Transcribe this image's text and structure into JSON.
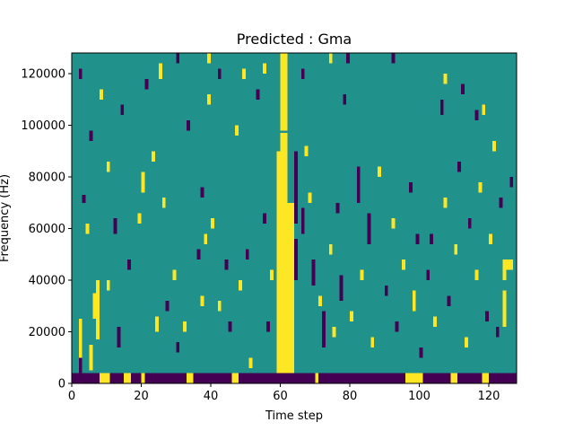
{
  "chart_data": {
    "type": "heatmap",
    "title": "Predicted : Gma",
    "xlabel": "Time step",
    "ylabel": "Frequency (Hz)",
    "xlim": [
      0,
      128
    ],
    "ylim": [
      0,
      128000
    ],
    "x_ticks": [
      0,
      20,
      40,
      60,
      80,
      100,
      120
    ],
    "y_ticks": [
      0,
      20000,
      40000,
      60000,
      80000,
      100000,
      120000
    ],
    "x_tick_labels": [
      "0",
      "20",
      "40",
      "60",
      "80",
      "100",
      "120"
    ],
    "y_tick_labels": [
      "0",
      "20000",
      "40000",
      "60000",
      "80000",
      "100000",
      "120000"
    ],
    "grid": false,
    "colormap": "viridis",
    "levels": [
      "low",
      "mid",
      "high"
    ],
    "colors": {
      "low": "#440154",
      "mid": "#21918c",
      "high": "#fde725"
    },
    "background_level": "mid",
    "freq_bins": 128,
    "time_steps": 128,
    "bin_height_hz": 1000,
    "segments": [
      {
        "x0": 59,
        "x1": 60,
        "y0": 0,
        "y1": 90000,
        "level": "high"
      },
      {
        "x0": 60,
        "x1": 62,
        "y0": 0,
        "y1": 97000,
        "level": "high"
      },
      {
        "x0": 62,
        "x1": 64,
        "y0": 0,
        "y1": 70000,
        "level": "high"
      },
      {
        "x0": 60,
        "x1": 62,
        "y0": 98000,
        "y1": 128000,
        "level": "high"
      },
      {
        "x0": 0,
        "x1": 128,
        "y0": 0,
        "y1": 4000,
        "level": "low"
      },
      {
        "x0": 2,
        "x1": 3,
        "y0": 4000,
        "y1": 11000,
        "level": "low"
      },
      {
        "x0": 8,
        "x1": 11,
        "y0": 0,
        "y1": 4000,
        "level": "high"
      },
      {
        "x0": 15,
        "x1": 17,
        "y0": 0,
        "y1": 4000,
        "level": "high"
      },
      {
        "x0": 20,
        "x1": 21,
        "y0": 0,
        "y1": 4000,
        "level": "high"
      },
      {
        "x0": 33,
        "x1": 35,
        "y0": 0,
        "y1": 4000,
        "level": "high"
      },
      {
        "x0": 46,
        "x1": 48,
        "y0": 0,
        "y1": 4000,
        "level": "high"
      },
      {
        "x0": 70,
        "x1": 71,
        "y0": 0,
        "y1": 4000,
        "level": "high"
      },
      {
        "x0": 96,
        "x1": 101,
        "y0": 0,
        "y1": 4000,
        "level": "high"
      },
      {
        "x0": 109,
        "x1": 111,
        "y0": 0,
        "y1": 4000,
        "level": "high"
      },
      {
        "x0": 118,
        "x1": 120,
        "y0": 0,
        "y1": 4000,
        "level": "high"
      },
      {
        "x0": 2,
        "x1": 3,
        "y0": 10000,
        "y1": 25000,
        "level": "high"
      },
      {
        "x0": 5,
        "x1": 6,
        "y0": 5000,
        "y1": 15000,
        "level": "high"
      },
      {
        "x0": 6,
        "x1": 7,
        "y0": 25000,
        "y1": 35000,
        "level": "high"
      },
      {
        "x0": 7,
        "x1": 8,
        "y0": 17000,
        "y1": 40000,
        "level": "high"
      },
      {
        "x0": 4,
        "x1": 5,
        "y0": 58000,
        "y1": 62000,
        "level": "high"
      },
      {
        "x0": 3,
        "x1": 4,
        "y0": 70000,
        "y1": 73000,
        "level": "low"
      },
      {
        "x0": 10,
        "x1": 11,
        "y0": 82000,
        "y1": 86000,
        "level": "high"
      },
      {
        "x0": 10,
        "x1": 11,
        "y0": 36000,
        "y1": 40000,
        "level": "high"
      },
      {
        "x0": 13,
        "x1": 14,
        "y0": 14000,
        "y1": 22000,
        "level": "low"
      },
      {
        "x0": 16,
        "x1": 17,
        "y0": 44000,
        "y1": 48000,
        "level": "low"
      },
      {
        "x0": 12,
        "x1": 13,
        "y0": 58000,
        "y1": 64000,
        "level": "low"
      },
      {
        "x0": 14,
        "x1": 15,
        "y0": 104000,
        "y1": 108000,
        "level": "low"
      },
      {
        "x0": 20,
        "x1": 21,
        "y0": 74000,
        "y1": 82000,
        "level": "high"
      },
      {
        "x0": 19,
        "x1": 20,
        "y0": 62000,
        "y1": 66000,
        "level": "high"
      },
      {
        "x0": 21,
        "x1": 22,
        "y0": 114000,
        "y1": 118000,
        "level": "low"
      },
      {
        "x0": 23,
        "x1": 24,
        "y0": 86000,
        "y1": 90000,
        "level": "high"
      },
      {
        "x0": 24,
        "x1": 25,
        "y0": 20000,
        "y1": 26000,
        "level": "high"
      },
      {
        "x0": 26,
        "x1": 27,
        "y0": 68000,
        "y1": 72000,
        "level": "high"
      },
      {
        "x0": 27,
        "x1": 28,
        "y0": 28000,
        "y1": 32000,
        "level": "low"
      },
      {
        "x0": 29,
        "x1": 30,
        "y0": 40000,
        "y1": 44000,
        "level": "high"
      },
      {
        "x0": 30,
        "x1": 31,
        "y0": 12000,
        "y1": 16000,
        "level": "low"
      },
      {
        "x0": 32,
        "x1": 33,
        "y0": 20000,
        "y1": 24000,
        "level": "high"
      },
      {
        "x0": 33,
        "x1": 34,
        "y0": 98000,
        "y1": 102000,
        "level": "low"
      },
      {
        "x0": 36,
        "x1": 37,
        "y0": 48000,
        "y1": 52000,
        "level": "low"
      },
      {
        "x0": 37,
        "x1": 38,
        "y0": 30000,
        "y1": 34000,
        "level": "high"
      },
      {
        "x0": 37,
        "x1": 38,
        "y0": 72000,
        "y1": 76000,
        "level": "low"
      },
      {
        "x0": 38,
        "x1": 39,
        "y0": 54000,
        "y1": 58000,
        "level": "high"
      },
      {
        "x0": 39,
        "x1": 40,
        "y0": 108000,
        "y1": 112000,
        "level": "high"
      },
      {
        "x0": 40,
        "x1": 41,
        "y0": 60000,
        "y1": 64000,
        "level": "high"
      },
      {
        "x0": 42,
        "x1": 43,
        "y0": 28000,
        "y1": 32000,
        "level": "high"
      },
      {
        "x0": 42,
        "x1": 43,
        "y0": 118000,
        "y1": 122000,
        "level": "low"
      },
      {
        "x0": 44,
        "x1": 45,
        "y0": 44000,
        "y1": 48000,
        "level": "low"
      },
      {
        "x0": 45,
        "x1": 46,
        "y0": 20000,
        "y1": 24000,
        "level": "low"
      },
      {
        "x0": 47,
        "x1": 48,
        "y0": 96000,
        "y1": 100000,
        "level": "high"
      },
      {
        "x0": 48,
        "x1": 49,
        "y0": 36000,
        "y1": 40000,
        "level": "high"
      },
      {
        "x0": 50,
        "x1": 51,
        "y0": 48000,
        "y1": 52000,
        "level": "low"
      },
      {
        "x0": 51,
        "x1": 52,
        "y0": 6000,
        "y1": 10000,
        "level": "high"
      },
      {
        "x0": 53,
        "x1": 54,
        "y0": 110000,
        "y1": 114000,
        "level": "low"
      },
      {
        "x0": 55,
        "x1": 56,
        "y0": 62000,
        "y1": 66000,
        "level": "low"
      },
      {
        "x0": 57,
        "x1": 58,
        "y0": 40000,
        "y1": 44000,
        "level": "high"
      },
      {
        "x0": 56,
        "x1": 57,
        "y0": 20000,
        "y1": 24000,
        "level": "low"
      },
      {
        "x0": 64,
        "x1": 65,
        "y0": 40000,
        "y1": 56000,
        "level": "low"
      },
      {
        "x0": 64,
        "x1": 65,
        "y0": 62000,
        "y1": 90000,
        "level": "low"
      },
      {
        "x0": 66,
        "x1": 67,
        "y0": 58000,
        "y1": 68000,
        "level": "low"
      },
      {
        "x0": 67,
        "x1": 68,
        "y0": 88000,
        "y1": 92000,
        "level": "high"
      },
      {
        "x0": 68,
        "x1": 69,
        "y0": 70000,
        "y1": 74000,
        "level": "high"
      },
      {
        "x0": 69,
        "x1": 70,
        "y0": 38000,
        "y1": 48000,
        "level": "low"
      },
      {
        "x0": 71,
        "x1": 72,
        "y0": 30000,
        "y1": 34000,
        "level": "high"
      },
      {
        "x0": 72,
        "x1": 73,
        "y0": 14000,
        "y1": 28000,
        "level": "low"
      },
      {
        "x0": 74,
        "x1": 75,
        "y0": 50000,
        "y1": 54000,
        "level": "high"
      },
      {
        "x0": 75,
        "x1": 76,
        "y0": 18000,
        "y1": 22000,
        "level": "high"
      },
      {
        "x0": 76,
        "x1": 77,
        "y0": 66000,
        "y1": 70000,
        "level": "low"
      },
      {
        "x0": 77,
        "x1": 78,
        "y0": 32000,
        "y1": 42000,
        "level": "low"
      },
      {
        "x0": 78,
        "x1": 79,
        "y0": 108000,
        "y1": 112000,
        "level": "low"
      },
      {
        "x0": 80,
        "x1": 81,
        "y0": 24000,
        "y1": 28000,
        "level": "high"
      },
      {
        "x0": 82,
        "x1": 83,
        "y0": 70000,
        "y1": 84000,
        "level": "low"
      },
      {
        "x0": 83,
        "x1": 84,
        "y0": 40000,
        "y1": 44000,
        "level": "high"
      },
      {
        "x0": 85,
        "x1": 86,
        "y0": 54000,
        "y1": 66000,
        "level": "low"
      },
      {
        "x0": 86,
        "x1": 87,
        "y0": 14000,
        "y1": 18000,
        "level": "high"
      },
      {
        "x0": 88,
        "x1": 89,
        "y0": 80000,
        "y1": 84000,
        "level": "high"
      },
      {
        "x0": 90,
        "x1": 91,
        "y0": 34000,
        "y1": 38000,
        "level": "low"
      },
      {
        "x0": 92,
        "x1": 93,
        "y0": 60000,
        "y1": 64000,
        "level": "high"
      },
      {
        "x0": 93,
        "x1": 94,
        "y0": 20000,
        "y1": 24000,
        "level": "low"
      },
      {
        "x0": 95,
        "x1": 96,
        "y0": 44000,
        "y1": 48000,
        "level": "high"
      },
      {
        "x0": 97,
        "x1": 98,
        "y0": 74000,
        "y1": 78000,
        "level": "low"
      },
      {
        "x0": 98,
        "x1": 99,
        "y0": 28000,
        "y1": 36000,
        "level": "high"
      },
      {
        "x0": 99,
        "x1": 100,
        "y0": 54000,
        "y1": 58000,
        "level": "low"
      },
      {
        "x0": 100,
        "x1": 101,
        "y0": 10000,
        "y1": 14000,
        "level": "low"
      },
      {
        "x0": 102,
        "x1": 103,
        "y0": 40000,
        "y1": 44000,
        "level": "low"
      },
      {
        "x0": 103,
        "x1": 104,
        "y0": 54000,
        "y1": 58000,
        "level": "low"
      },
      {
        "x0": 104,
        "x1": 105,
        "y0": 22000,
        "y1": 26000,
        "level": "high"
      },
      {
        "x0": 106,
        "x1": 107,
        "y0": 104000,
        "y1": 110000,
        "level": "low"
      },
      {
        "x0": 107,
        "x1": 108,
        "y0": 68000,
        "y1": 72000,
        "level": "high"
      },
      {
        "x0": 108,
        "x1": 109,
        "y0": 30000,
        "y1": 34000,
        "level": "low"
      },
      {
        "x0": 110,
        "x1": 111,
        "y0": 50000,
        "y1": 54000,
        "level": "high"
      },
      {
        "x0": 111,
        "x1": 112,
        "y0": 82000,
        "y1": 86000,
        "level": "low"
      },
      {
        "x0": 113,
        "x1": 114,
        "y0": 14000,
        "y1": 18000,
        "level": "high"
      },
      {
        "x0": 114,
        "x1": 115,
        "y0": 60000,
        "y1": 64000,
        "level": "low"
      },
      {
        "x0": 116,
        "x1": 117,
        "y0": 40000,
        "y1": 44000,
        "level": "high"
      },
      {
        "x0": 117,
        "x1": 118,
        "y0": 74000,
        "y1": 78000,
        "level": "high"
      },
      {
        "x0": 118,
        "x1": 119,
        "y0": 104000,
        "y1": 108000,
        "level": "high"
      },
      {
        "x0": 119,
        "x1": 120,
        "y0": 24000,
        "y1": 28000,
        "level": "low"
      },
      {
        "x0": 120,
        "x1": 121,
        "y0": 54000,
        "y1": 58000,
        "level": "high"
      },
      {
        "x0": 121,
        "x1": 122,
        "y0": 90000,
        "y1": 94000,
        "level": "high"
      },
      {
        "x0": 122,
        "x1": 123,
        "y0": 18000,
        "y1": 22000,
        "level": "low"
      },
      {
        "x0": 123,
        "x1": 124,
        "y0": 68000,
        "y1": 72000,
        "level": "low"
      },
      {
        "x0": 124,
        "x1": 125,
        "y0": 40000,
        "y1": 48000,
        "level": "high"
      },
      {
        "x0": 125,
        "x1": 127,
        "y0": 44000,
        "y1": 48000,
        "level": "high"
      },
      {
        "x0": 124,
        "x1": 125,
        "y0": 22000,
        "y1": 36000,
        "level": "high"
      },
      {
        "x0": 126,
        "x1": 127,
        "y0": 76000,
        "y1": 80000,
        "level": "low"
      },
      {
        "x0": 2,
        "x1": 3,
        "y0": 118000,
        "y1": 122000,
        "level": "low"
      },
      {
        "x0": 5,
        "x1": 6,
        "y0": 94000,
        "y1": 98000,
        "level": "low"
      },
      {
        "x0": 8,
        "x1": 9,
        "y0": 110000,
        "y1": 114000,
        "level": "high"
      },
      {
        "x0": 25,
        "x1": 26,
        "y0": 118000,
        "y1": 124000,
        "level": "high"
      },
      {
        "x0": 30,
        "x1": 31,
        "y0": 124000,
        "y1": 128000,
        "level": "low"
      },
      {
        "x0": 39,
        "x1": 40,
        "y0": 124000,
        "y1": 128000,
        "level": "high"
      },
      {
        "x0": 49,
        "x1": 50,
        "y0": 118000,
        "y1": 122000,
        "level": "high"
      },
      {
        "x0": 55,
        "x1": 56,
        "y0": 120000,
        "y1": 124000,
        "level": "high"
      },
      {
        "x0": 66,
        "x1": 67,
        "y0": 118000,
        "y1": 122000,
        "level": "low"
      },
      {
        "x0": 74,
        "x1": 75,
        "y0": 124000,
        "y1": 128000,
        "level": "high"
      },
      {
        "x0": 79,
        "x1": 80,
        "y0": 124000,
        "y1": 128000,
        "level": "low"
      },
      {
        "x0": 92,
        "x1": 93,
        "y0": 124000,
        "y1": 128000,
        "level": "low"
      },
      {
        "x0": 107,
        "x1": 108,
        "y0": 116000,
        "y1": 120000,
        "level": "high"
      },
      {
        "x0": 112,
        "x1": 113,
        "y0": 112000,
        "y1": 116000,
        "level": "low"
      },
      {
        "x0": 116,
        "x1": 117,
        "y0": 102000,
        "y1": 106000,
        "level": "low"
      }
    ]
  }
}
